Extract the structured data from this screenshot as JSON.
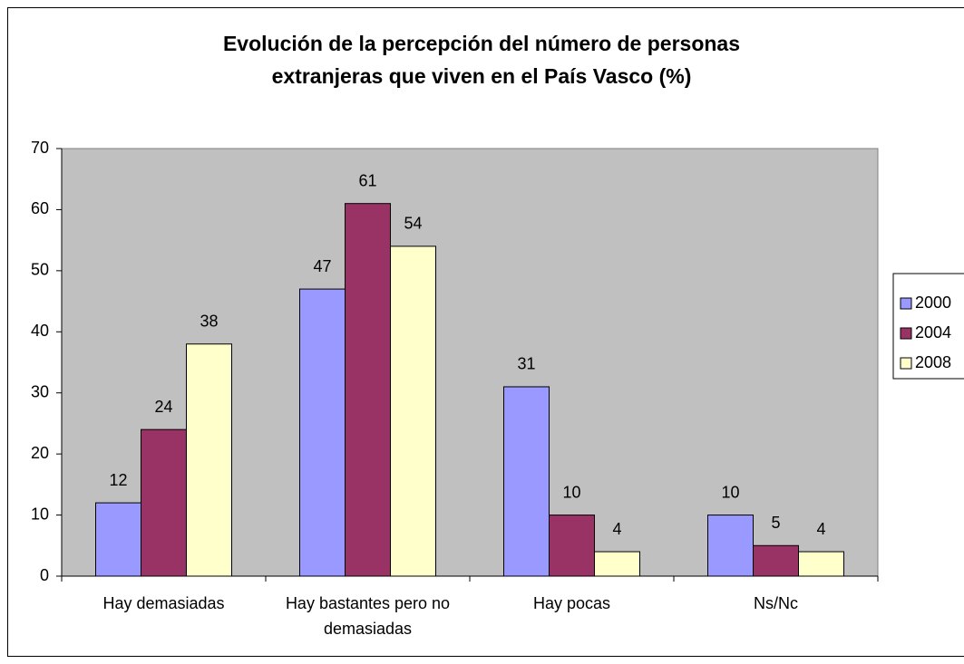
{
  "chart_data": {
    "type": "bar",
    "title": "Evolución de la percepción del número de personas extranjeras que viven en el País Vasco (%)",
    "categories": [
      "Hay demasiadas",
      "Hay bastantes pero no demasiadas",
      "Hay pocas",
      "Ns/Nc"
    ],
    "series": [
      {
        "name": "2000",
        "color": "#9999ff",
        "values": [
          12,
          47,
          31,
          10
        ]
      },
      {
        "name": "2004",
        "color": "#993366",
        "values": [
          24,
          61,
          10,
          5
        ]
      },
      {
        "name": "2008",
        "color": "#ffffcc",
        "values": [
          38,
          54,
          4,
          4
        ]
      }
    ],
    "ylim": [
      0,
      70
    ],
    "yticks": [
      0,
      10,
      20,
      30,
      40,
      50,
      60,
      70
    ],
    "grid": false,
    "legend": "right"
  }
}
